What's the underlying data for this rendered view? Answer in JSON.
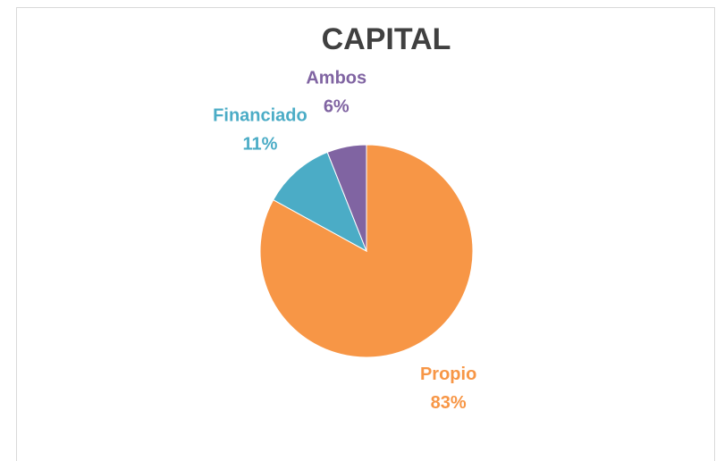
{
  "chart_data": {
    "type": "pie",
    "title": "CAPITAL",
    "categories": [
      "Propio",
      "Financiado",
      "Ambos"
    ],
    "values": [
      83,
      11,
      6
    ],
    "value_labels": [
      "83%",
      "11%",
      "6%"
    ],
    "colors": [
      "#f79646",
      "#4bacc6",
      "#8064a2"
    ]
  }
}
